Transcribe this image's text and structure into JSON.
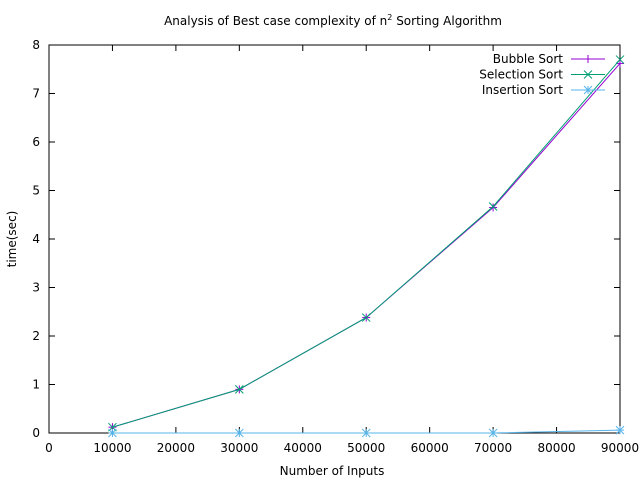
{
  "chart_data": {
    "type": "line",
    "title": "Analysis of Best case complexity of n",
    "title_sup": "2",
    "title_tail": " Sorting Algorithm",
    "xlabel": "Number of Inputs",
    "ylabel": "time(sec)",
    "xlim": [
      0,
      90000
    ],
    "ylim": [
      0,
      8
    ],
    "x_ticks": [
      "0",
      "10000",
      "20000",
      "30000",
      "40000",
      "50000",
      "60000",
      "70000",
      "80000",
      "90000"
    ],
    "y_ticks": [
      "0",
      "1",
      "2",
      "3",
      "4",
      "5",
      "6",
      "7",
      "8"
    ],
    "grid": false,
    "legend_position": "top-right",
    "x": [
      10000,
      30000,
      50000,
      70000,
      90000
    ],
    "series": [
      {
        "name": "Bubble Sort",
        "color": "#9400d3",
        "marker": "plus",
        "values": [
          0.12,
          0.9,
          2.38,
          4.65,
          7.62
        ]
      },
      {
        "name": "Selection Sort",
        "color": "#009e73",
        "marker": "cross",
        "values": [
          0.12,
          0.9,
          2.38,
          4.67,
          7.7
        ]
      },
      {
        "name": "Insertion Sort",
        "color": "#56b4e9",
        "marker": "star",
        "values": [
          0.0,
          0.0,
          0.0,
          0.0,
          0.06
        ]
      }
    ]
  }
}
